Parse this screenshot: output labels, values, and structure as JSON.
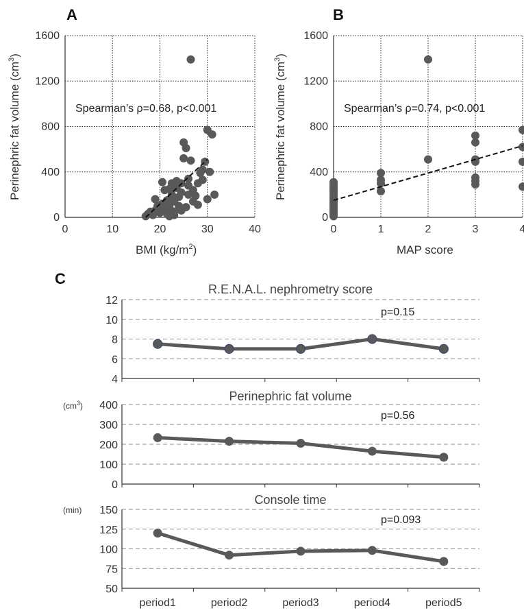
{
  "figure": {
    "panel_labels": [
      "A",
      "B",
      "C"
    ],
    "colors": {
      "marker": "#595959",
      "grid": "#222222",
      "dashed_grid": "#8c8c8c",
      "axis": "#333333",
      "marker_edge_c1": "#3f4a6b"
    }
  },
  "chart_data": [
    {
      "id": "A",
      "type": "scatter",
      "title": "",
      "xlabel_main": "BMI (kg/m",
      "xlabel_sup": "2",
      "xlabel_end": ")",
      "ylabel_main": "Perinephric fat volume (cm",
      "ylabel_sup": "3",
      "ylabel_end": ")",
      "xlim": [
        0,
        40
      ],
      "ylim": [
        0,
        1600
      ],
      "xticks": [
        "0",
        "10",
        "20",
        "30",
        "40"
      ],
      "yticks": [
        "0",
        "400",
        "800",
        "1200",
        "1600"
      ],
      "grid": "dotted",
      "annotation": "Spearman’s ρ=0.68, p<0.001",
      "trendline": {
        "x": [
          17,
          30
        ],
        "y": [
          0,
          510
        ],
        "style": "dashed"
      },
      "points": [
        [
          17.0,
          10
        ],
        [
          17.5,
          30
        ],
        [
          18.0,
          50
        ],
        [
          18.5,
          20
        ],
        [
          19.0,
          60
        ],
        [
          19.5,
          100
        ],
        [
          19.0,
          160
        ],
        [
          20.0,
          40
        ],
        [
          20.0,
          80
        ],
        [
          20.5,
          120
        ],
        [
          20.5,
          310
        ],
        [
          21.0,
          60
        ],
        [
          21.0,
          240
        ],
        [
          21.5,
          150
        ],
        [
          21.5,
          30
        ],
        [
          22.0,
          250
        ],
        [
          22.0,
          90
        ],
        [
          22.5,
          200
        ],
        [
          22.5,
          300
        ],
        [
          23.0,
          140
        ],
        [
          23.0,
          50
        ],
        [
          23.5,
          260
        ],
        [
          23.5,
          320
        ],
        [
          24.0,
          180
        ],
        [
          24.0,
          100
        ],
        [
          24.5,
          300
        ],
        [
          24.5,
          220
        ],
        [
          25.0,
          660
        ],
        [
          25.0,
          520
        ],
        [
          25.5,
          610
        ],
        [
          25.5,
          90
        ],
        [
          26.0,
          340
        ],
        [
          26.0,
          200
        ],
        [
          26.5,
          500
        ],
        [
          26.5,
          1390
        ],
        [
          27.0,
          240
        ],
        [
          27.0,
          140
        ],
        [
          27.5,
          190
        ],
        [
          28.0,
          300
        ],
        [
          28.0,
          110
        ],
        [
          28.5,
          390
        ],
        [
          29.0,
          420
        ],
        [
          29.0,
          330
        ],
        [
          29.5,
          490
        ],
        [
          30.0,
          770
        ],
        [
          30.0,
          160
        ],
        [
          30.5,
          400
        ],
        [
          31.0,
          730
        ],
        [
          31.5,
          200
        ],
        [
          22.0,
          10
        ],
        [
          23.0,
          20
        ],
        [
          24.5,
          60
        ],
        [
          26.0,
          280
        ]
      ]
    },
    {
      "id": "B",
      "type": "scatter",
      "title": "",
      "xlabel_main": "MAP score",
      "ylabel_main": "Perinephric fat volume (cm",
      "ylabel_sup": "3",
      "ylabel_end": ")",
      "xlim": [
        0,
        4
      ],
      "ylim": [
        0,
        1600
      ],
      "xticks": [
        "0",
        "1",
        "2",
        "3",
        "4"
      ],
      "yticks": [
        "0",
        "400",
        "800",
        "1200",
        "1600"
      ],
      "grid": "dotted",
      "annotation": "Spearman’s ρ=0.74, p<0.001",
      "trendline": {
        "x": [
          0,
          4
        ],
        "y": [
          150,
          630
        ],
        "style": "dashed"
      },
      "points": [
        [
          0,
          10
        ],
        [
          0,
          30
        ],
        [
          0,
          50
        ],
        [
          0,
          70
        ],
        [
          0,
          90
        ],
        [
          0,
          110
        ],
        [
          0,
          130
        ],
        [
          0,
          150
        ],
        [
          0,
          170
        ],
        [
          0,
          190
        ],
        [
          0,
          210
        ],
        [
          0,
          230
        ],
        [
          0,
          250
        ],
        [
          0,
          270
        ],
        [
          0,
          290
        ],
        [
          0,
          310
        ],
        [
          1,
          230
        ],
        [
          1,
          300
        ],
        [
          1,
          330
        ],
        [
          1,
          390
        ],
        [
          2,
          510
        ],
        [
          2,
          1390
        ],
        [
          3,
          290
        ],
        [
          3,
          320
        ],
        [
          3,
          350
        ],
        [
          3,
          490
        ],
        [
          3,
          510
        ],
        [
          3,
          660
        ],
        [
          3,
          720
        ],
        [
          4,
          270
        ],
        [
          4,
          490
        ],
        [
          4,
          620
        ],
        [
          4,
          770
        ]
      ]
    },
    {
      "id": "C1",
      "type": "line",
      "title": "R.E.N.A.L. nephrometry score",
      "unit": "",
      "categories": [
        "period1",
        "period2",
        "period3",
        "period4",
        "period5"
      ],
      "values": [
        7.5,
        7.0,
        7.0,
        8.0,
        7.0
      ],
      "ylim": [
        4,
        12
      ],
      "yticks": [
        "4",
        "6",
        "8",
        "10",
        "12"
      ],
      "pvalue": "p=0.15",
      "grid": "dashed"
    },
    {
      "id": "C2",
      "type": "line",
      "title": "Perinephric fat volume",
      "unit_main": "(cm",
      "unit_sup": "3",
      "unit_end": ")",
      "categories": [
        "period1",
        "period2",
        "period3",
        "period4",
        "period5"
      ],
      "values": [
        233,
        215,
        205,
        165,
        135
      ],
      "ylim": [
        0,
        400
      ],
      "yticks": [
        "0",
        "100",
        "200",
        "300",
        "400"
      ],
      "pvalue": "p=0.56",
      "grid": "dashed"
    },
    {
      "id": "C3",
      "type": "line",
      "title": "Console time",
      "unit": "(min)",
      "categories": [
        "period1",
        "period2",
        "period3",
        "period4",
        "period5"
      ],
      "values": [
        120,
        92,
        97,
        98,
        84
      ],
      "ylim": [
        50,
        150
      ],
      "yticks": [
        "50",
        "75",
        "100",
        "125",
        "150"
      ],
      "pvalue": "p=0.093",
      "grid": "dashed"
    }
  ]
}
